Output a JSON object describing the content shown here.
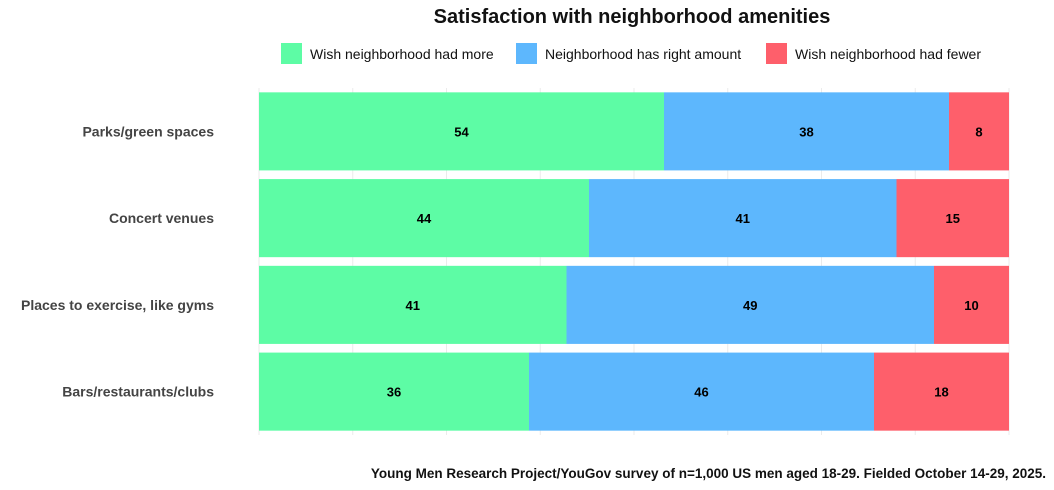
{
  "chart_data": {
    "type": "bar",
    "orientation": "horizontal",
    "stacked": true,
    "title": "Satisfaction with neighborhood amenities",
    "categories": [
      "Parks/green spaces",
      "Concert venues",
      "Places to exercise, like gyms",
      "Bars/restaurants/clubs"
    ],
    "series": [
      {
        "name": "Wish neighborhood had more",
        "color": "#5dfca5",
        "values": [
          54,
          44,
          41,
          36
        ]
      },
      {
        "name": "Neighborhood has right amount",
        "color": "#5db7fd",
        "values": [
          38,
          41,
          49,
          46
        ]
      },
      {
        "name": "Wish neighborhood had fewer",
        "color": "#fe5f6b",
        "values": [
          8,
          15,
          10,
          18
        ]
      }
    ],
    "xlim": [
      0,
      100
    ],
    "x_gridlines": [
      0,
      12.5,
      25,
      37.5,
      50,
      62.5,
      75,
      87.5,
      100
    ],
    "legend_position": "top",
    "caption": "Young Men Research Project/YouGov survey of n=1,000 US men aged 18-29. Fielded October 14-29, 2025.",
    "xlabel": "",
    "ylabel": ""
  }
}
